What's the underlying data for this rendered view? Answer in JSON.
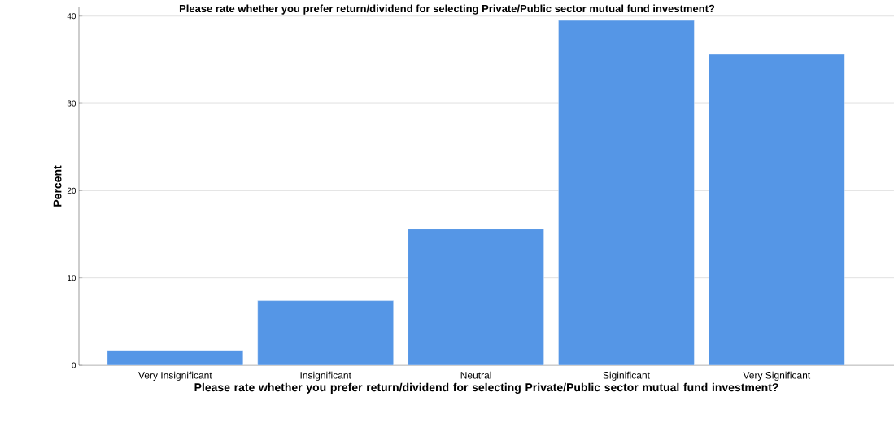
{
  "chart_data": {
    "type": "bar",
    "title": "Please rate whether you prefer return/dividend for selecting Private/Public sector mutual fund investment?",
    "xlabel": "Please rate whether you prefer return/dividend for selecting Private/Public sector mutual fund investment?",
    "ylabel": "Percent",
    "categories": [
      "Very Insignificant",
      "Insignificant",
      "Neutral",
      "Siginificant",
      "Very Significant"
    ],
    "values": [
      1.7,
      7.4,
      15.6,
      39.5,
      35.6
    ],
    "color": "#5596e6",
    "ylim": [
      0,
      41
    ],
    "yticks": [
      0,
      10,
      20,
      30,
      40
    ],
    "grid": "y"
  }
}
